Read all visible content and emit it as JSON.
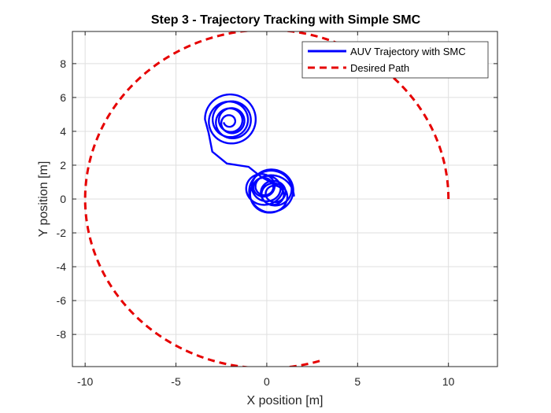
{
  "chart_data": {
    "type": "line",
    "title": "Step 3 - Trajectory Tracking with Simple SMC",
    "xlabel": "X position [m]",
    "ylabel": "Y position [m]",
    "xlim": [
      -10.7,
      12.7
    ],
    "ylim": [
      -9.9,
      9.9
    ],
    "xticks": [
      -10,
      -5,
      0,
      5,
      10
    ],
    "yticks": [
      -8,
      -6,
      -4,
      -2,
      0,
      2,
      4,
      6,
      8
    ],
    "xtick_labels": [
      "-10",
      "-5",
      "0",
      "5",
      "10"
    ],
    "ytick_labels": [
      "-8",
      "-6",
      "-4",
      "-2",
      "0",
      "2",
      "4",
      "6",
      "8"
    ],
    "grid": true,
    "legend_position": "top-right",
    "series": [
      {
        "name": "AUV Trajectory with SMC",
        "color": "#0000ff",
        "style": "solid",
        "description_points": {
          "upper_spiral_center": [
            -2.0,
            4.5
          ],
          "upper_spiral_extent": {
            "x": [
              -3.5,
              -0.7
            ],
            "y": [
              3.5,
              6.1
            ]
          },
          "connector": [
            [
              -3.2,
              3.9
            ],
            [
              -3.0,
              2.8
            ],
            [
              -2.2,
              2.1
            ],
            [
              -1.0,
              1.9
            ],
            [
              -0.3,
              1.3
            ]
          ],
          "lower_cluster_center": [
            0.2,
            0.4
          ],
          "lower_cluster_extent": {
            "x": [
              -1.3,
              1.5
            ],
            "y": [
              -0.9,
              1.9
            ]
          }
        }
      },
      {
        "name": "Desired Path",
        "color": "#e60000",
        "style": "dashed",
        "radius": 10,
        "center": [
          0,
          0
        ],
        "angle_start_deg": 0,
        "angle_end_deg": 287
      }
    ]
  }
}
